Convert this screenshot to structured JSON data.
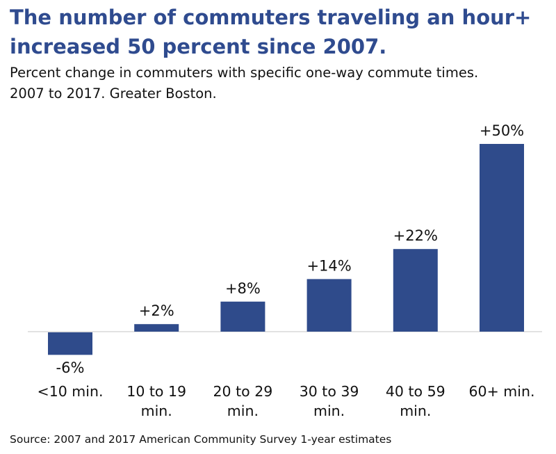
{
  "chart_data": {
    "type": "bar",
    "title_lines": [
      "The number of commuters traveling an hour+",
      "increased 50 percent since 2007."
    ],
    "subtitle_lines": [
      "Percent change in commuters with specific one-way commute times.",
      "2007 to 2017. Greater Boston."
    ],
    "categories": [
      [
        "<10 min."
      ],
      [
        "10 to 19",
        "min."
      ],
      [
        "20 to 29",
        "min."
      ],
      [
        "30 to 39",
        "min."
      ],
      [
        "40 to 59",
        "min."
      ],
      [
        "60+ min."
      ]
    ],
    "values": [
      -6,
      2,
      8,
      14,
      22,
      50
    ],
    "data_labels": [
      "-6%",
      "+2%",
      "+8%",
      "+14%",
      "+22%",
      "+50%"
    ],
    "ylim": [
      -6,
      50
    ],
    "grid": false,
    "xlabel": "",
    "ylabel": "",
    "bar_color": "#2f4b8b",
    "title_color": "#2f4b8f",
    "source": "Source: 2007 and 2017 American Community Survey 1-year estimates"
  }
}
